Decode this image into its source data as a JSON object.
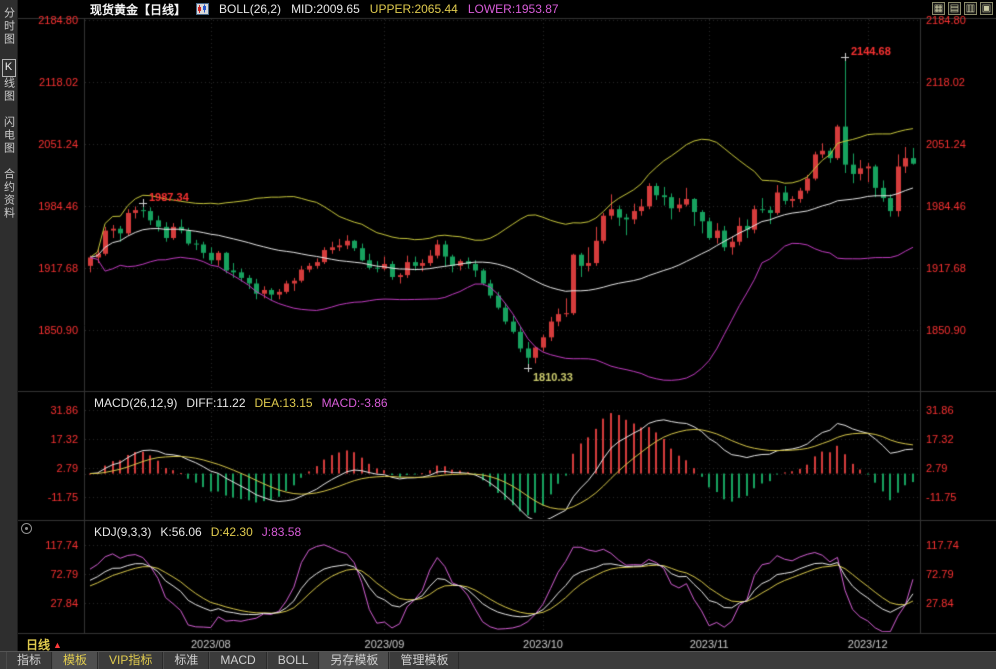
{
  "header": {
    "title": "现货黄金【日线】",
    "boll_label": "BOLL(26,2)",
    "mid": "MID:2009.65",
    "upper": "UPPER:2065.44",
    "lower": "LOWER:1953.87",
    "window_icons": [
      {
        "name": "grid-layout-icon",
        "glyph": "▦"
      },
      {
        "name": "split-horizontal-icon",
        "glyph": "▤"
      },
      {
        "name": "split-vertical-icon",
        "glyph": "▥"
      },
      {
        "name": "single-pane-icon",
        "glyph": "▣"
      }
    ]
  },
  "sidebar": {
    "items": [
      {
        "label": "分时图"
      },
      {
        "label": "K线图",
        "active": true,
        "first": "K",
        "rest": "线图"
      },
      {
        "label": "闪电图"
      },
      {
        "label": "合约资料"
      }
    ]
  },
  "indicators": {
    "macd": {
      "title": "MACD(26,12,9)",
      "diff": "DIFF:11.22",
      "dea": "DEA:13.15",
      "macd": "MACD:-3.86"
    },
    "kdj": {
      "title": "KDJ(9,3,3)",
      "k": "K:56.06",
      "d": "D:42.30",
      "j": "J:83.58"
    }
  },
  "period_selector": {
    "label": "日线",
    "arrow": "▲"
  },
  "bottom_tabs": [
    {
      "label": "指标"
    },
    {
      "label": "模板",
      "active": true,
      "yellow": true
    },
    {
      "label": "VIP指标",
      "yellow": true
    },
    {
      "label": "标准"
    },
    {
      "label": "MACD"
    },
    {
      "label": "BOLL"
    },
    {
      "label": "另存模板",
      "active": true
    },
    {
      "label": "管理模板"
    }
  ],
  "colors": {
    "background": "#000000",
    "up": "#d53c3c",
    "down": "#17a25f",
    "boll_upper": "#c8c83c",
    "boll_mid": "#e8e8e8",
    "boll_lower": "#c23cc2",
    "macd_diff_line": "#e8e8e8",
    "macd_dea_line": "#d8c84a",
    "kdj_k": "#e8e8e8",
    "kdj_d": "#d8c84a",
    "kdj_j": "#d45fd4",
    "axis_text": "#fa3232",
    "month_text": "#c9c9c9",
    "annotation_high": "#fa3232",
    "annotation_low": "#cdcd6e",
    "grid": "#282828",
    "frame": "#343434",
    "cross": "#d0d0d0"
  },
  "chart_data": {
    "type": "candlestick",
    "instrument": "现货黄金",
    "period": "日线",
    "boll": {
      "period": 26,
      "dev": 2
    },
    "macd_params": [
      26,
      12,
      9
    ],
    "kdj_params": [
      9,
      3,
      3
    ],
    "y_axis_ticks_main": [
      "2184.80",
      "2118.02",
      "2051.24",
      "1984.46",
      "1917.68",
      "1850.90"
    ],
    "y_axis_ticks_macd": [
      "31.86",
      "17.32",
      "2.79",
      "-11.75"
    ],
    "y_axis_ticks_kdj": [
      "117.74",
      "72.79",
      "27.84"
    ],
    "x_axis_months": [
      {
        "label": "2023/08",
        "index": 16
      },
      {
        "label": "2023/09",
        "index": 39
      },
      {
        "label": "2023/10",
        "index": 60
      },
      {
        "label": "2023/11",
        "index": 82
      },
      {
        "label": "2023/12",
        "index": 103
      }
    ],
    "annotations": [
      {
        "text": "1987.34",
        "index": 7,
        "price": 1987.34,
        "type": "high"
      },
      {
        "text": "2144.68",
        "index": 100,
        "price": 2144.68,
        "type": "high"
      },
      {
        "text": "1810.33",
        "index": 58,
        "price": 1810.33,
        "type": "low"
      }
    ],
    "ohlc_format": [
      "open",
      "high",
      "low",
      "close"
    ],
    "candles": [
      [
        1920,
        1931,
        1913,
        1929
      ],
      [
        1929,
        1938,
        1923,
        1933
      ],
      [
        1933,
        1962,
        1931,
        1958
      ],
      [
        1958,
        1964,
        1950,
        1960
      ],
      [
        1960,
        1963,
        1946,
        1955
      ],
      [
        1955,
        1981,
        1953,
        1977
      ],
      [
        1977,
        1984,
        1971,
        1980
      ],
      [
        1980,
        1987.34,
        1972,
        1979
      ],
      [
        1979,
        1983,
        1964,
        1969
      ],
      [
        1969,
        1974,
        1957,
        1962
      ],
      [
        1962,
        1967,
        1946,
        1950
      ],
      [
        1950,
        1966,
        1948,
        1962
      ],
      [
        1962,
        1970,
        1955,
        1958
      ],
      [
        1958,
        1961,
        1942,
        1944
      ],
      [
        1944,
        1948,
        1937,
        1943
      ],
      [
        1943,
        1946,
        1928,
        1934
      ],
      [
        1934,
        1940,
        1922,
        1926
      ],
      [
        1926,
        1936,
        1920,
        1934
      ],
      [
        1934,
        1935,
        1912,
        1915
      ],
      [
        1915,
        1923,
        1907,
        1913
      ],
      [
        1913,
        1917,
        1903,
        1907
      ],
      [
        1907,
        1910,
        1895,
        1901
      ],
      [
        1901,
        1906,
        1884,
        1890
      ],
      [
        1890,
        1898,
        1885,
        1894
      ],
      [
        1894,
        1896,
        1883,
        1889
      ],
      [
        1889,
        1895,
        1884,
        1892
      ],
      [
        1892,
        1904,
        1890,
        1901
      ],
      [
        1901,
        1907,
        1893,
        1904
      ],
      [
        1904,
        1920,
        1902,
        1916
      ],
      [
        1916,
        1923,
        1913,
        1920
      ],
      [
        1920,
        1928,
        1917,
        1924
      ],
      [
        1924,
        1940,
        1922,
        1937
      ],
      [
        1937,
        1946,
        1933,
        1940
      ],
      [
        1940,
        1949,
        1936,
        1942
      ],
      [
        1942,
        1953,
        1938,
        1947
      ],
      [
        1947,
        1948,
        1936,
        1939
      ],
      [
        1939,
        1944,
        1925,
        1926
      ],
      [
        1926,
        1933,
        1916,
        1918
      ],
      [
        1918,
        1925,
        1913,
        1917
      ],
      [
        1917,
        1930,
        1915,
        1922
      ],
      [
        1922,
        1925,
        1905,
        1908
      ],
      [
        1908,
        1912,
        1901,
        1910
      ],
      [
        1910,
        1931,
        1907,
        1924
      ],
      [
        1924,
        1930,
        1915,
        1920
      ],
      [
        1920,
        1927,
        1914,
        1923
      ],
      [
        1923,
        1937,
        1920,
        1931
      ],
      [
        1931,
        1948,
        1928,
        1943
      ],
      [
        1943,
        1947,
        1919,
        1930
      ],
      [
        1930,
        1932,
        1913,
        1920
      ],
      [
        1920,
        1927,
        1915,
        1925
      ],
      [
        1925,
        1929,
        1917,
        1922
      ],
      [
        1922,
        1926,
        1908,
        1915
      ],
      [
        1915,
        1917,
        1899,
        1901
      ],
      [
        1901,
        1905,
        1885,
        1888
      ],
      [
        1888,
        1892,
        1873,
        1875
      ],
      [
        1875,
        1880,
        1857,
        1860
      ],
      [
        1860,
        1866,
        1847,
        1849
      ],
      [
        1849,
        1855,
        1827,
        1831
      ],
      [
        1831,
        1838,
        1810.33,
        1821
      ],
      [
        1821,
        1833,
        1815,
        1832
      ],
      [
        1832,
        1846,
        1828,
        1843
      ],
      [
        1843,
        1865,
        1839,
        1860
      ],
      [
        1860,
        1874,
        1855,
        1868
      ],
      [
        1868,
        1885,
        1865,
        1869
      ],
      [
        1869,
        1933,
        1867,
        1932
      ],
      [
        1932,
        1934,
        1908,
        1920
      ],
      [
        1920,
        1940,
        1914,
        1923
      ],
      [
        1923,
        1962,
        1920,
        1947
      ],
      [
        1947,
        1977,
        1944,
        1974
      ],
      [
        1974,
        1997,
        1970,
        1981
      ],
      [
        1981,
        1985,
        1963,
        1972
      ],
      [
        1972,
        1976,
        1953,
        1970
      ],
      [
        1970,
        1987,
        1965,
        1979
      ],
      [
        1979,
        1992,
        1974,
        1984
      ],
      [
        1984,
        2009,
        1981,
        2006
      ],
      [
        2006,
        2009,
        1991,
        1996
      ],
      [
        1996,
        2005,
        1985,
        1994
      ],
      [
        1994,
        1998,
        1970,
        1982
      ],
      [
        1982,
        1993,
        1978,
        1986
      ],
      [
        1986,
        2004,
        1984,
        1992
      ],
      [
        1992,
        1993,
        1963,
        1978
      ],
      [
        1978,
        1980,
        1955,
        1968
      ],
      [
        1968,
        1972,
        1948,
        1950
      ],
      [
        1950,
        1966,
        1944,
        1958
      ],
      [
        1958,
        1963,
        1936,
        1940
      ],
      [
        1940,
        1952,
        1932,
        1946
      ],
      [
        1946,
        1972,
        1942,
        1963
      ],
      [
        1963,
        1970,
        1950,
        1959
      ],
      [
        1959,
        1985,
        1955,
        1981
      ],
      [
        1981,
        1993,
        1977,
        1980
      ],
      [
        1980,
        1984,
        1965,
        1977
      ],
      [
        1977,
        2007,
        1975,
        1999
      ],
      [
        1999,
        2006,
        1986,
        1990
      ],
      [
        1990,
        1995,
        1983,
        1992
      ],
      [
        1992,
        2004,
        1988,
        2001
      ],
      [
        2001,
        2018,
        1998,
        2014
      ],
      [
        2014,
        2043,
        2012,
        2040
      ],
      [
        2040,
        2052,
        2036,
        2044
      ],
      [
        2044,
        2047,
        2031,
        2036
      ],
      [
        2036,
        2072,
        2034,
        2070
      ],
      [
        2070,
        2144.68,
        2020,
        2029
      ],
      [
        2029,
        2041,
        2009,
        2019
      ],
      [
        2019,
        2034,
        2012,
        2025
      ],
      [
        2025,
        2031,
        2010,
        2027
      ],
      [
        2027,
        2029,
        1994,
        2004
      ],
      [
        2004,
        2012,
        1989,
        1993
      ],
      [
        1993,
        1997,
        1973,
        1979
      ],
      [
        1979,
        2040,
        1973,
        2027
      ],
      [
        2027,
        2048,
        2020,
        2036
      ],
      [
        2036,
        2047,
        2029,
        2030
      ]
    ]
  }
}
